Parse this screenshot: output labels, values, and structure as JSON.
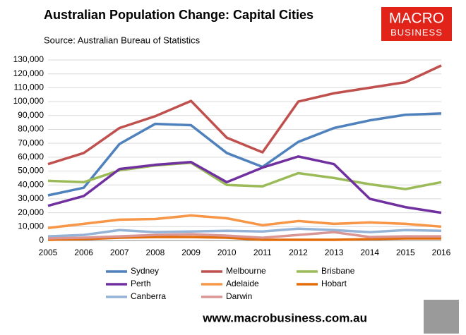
{
  "chart_data": {
    "type": "line",
    "title": "Australian Population Change: Capital Cities",
    "subtitle": "Source: Australian Bureau of Statistics",
    "categories": [
      "2005",
      "2006",
      "2007",
      "2008",
      "2009",
      "2010",
      "2011",
      "2012",
      "2013",
      "2014",
      "2015",
      "2016"
    ],
    "series": [
      {
        "name": "Sydney",
        "color": "#4f81bd",
        "values": [
          32500,
          38000,
          69500,
          84000,
          83000,
          63000,
          53000,
          71000,
          81000,
          86500,
          90500,
          91500
        ]
      },
      {
        "name": "Melbourne",
        "color": "#c0504d",
        "values": [
          55000,
          63000,
          81000,
          89500,
          100500,
          74000,
          63500,
          100000,
          106000,
          110000,
          114000,
          126000
        ]
      },
      {
        "name": "Brisbane",
        "color": "#9bbb59",
        "values": [
          43000,
          42000,
          50500,
          54000,
          56000,
          40000,
          39000,
          48500,
          45000,
          40500,
          37000,
          42000
        ]
      },
      {
        "name": "Perth",
        "color": "#7030a0",
        "values": [
          25000,
          32000,
          51500,
          54500,
          56500,
          42000,
          52500,
          60500,
          55000,
          30000,
          24000,
          20000
        ]
      },
      {
        "name": "Adelaide",
        "color": "#f79646",
        "values": [
          9000,
          12000,
          15000,
          15500,
          18000,
          16000,
          11000,
          14000,
          12000,
          13000,
          12000,
          10000
        ]
      },
      {
        "name": "Hobart",
        "color": "#e46c0a",
        "values": [
          500,
          1000,
          2000,
          2500,
          2500,
          2000,
          500,
          500,
          500,
          1000,
          1500,
          1500
        ]
      },
      {
        "name": "Canberra",
        "color": "#95b3d7",
        "values": [
          3000,
          4000,
          7500,
          6000,
          6500,
          7000,
          6500,
          8500,
          7500,
          6000,
          7500,
          7000
        ]
      },
      {
        "name": "Darwin",
        "color": "#d99694",
        "values": [
          1500,
          2000,
          3000,
          4000,
          4500,
          3500,
          2000,
          4000,
          6000,
          2500,
          3000,
          3000
        ]
      }
    ],
    "ylim": [
      0,
      130000
    ],
    "yticks": [
      0,
      {
        "value": 10000,
        "label": "10,000"
      },
      {
        "value": 20000,
        "label": "20,000"
      },
      {
        "value": 30000,
        "label": "30,000"
      },
      {
        "value": 40000,
        "label": "40,000"
      },
      {
        "value": 50000,
        "label": "50,000"
      },
      {
        "value": 60000,
        "label": "60,000"
      },
      {
        "value": 70000,
        "label": "70,000"
      },
      {
        "value": 80000,
        "label": "80,000"
      },
      {
        "value": 90000,
        "label": "90,000"
      },
      {
        "value": 100000,
        "label": "100,000"
      },
      {
        "value": 110000,
        "label": "110,000"
      },
      {
        "value": 120000,
        "label": "120,000"
      },
      {
        "value": 130000,
        "label": "130,000"
      }
    ],
    "grid": true,
    "legend": "bottom"
  },
  "logo": {
    "line1": "MACRO",
    "line2": "BUSINESS"
  },
  "footer": {
    "website": "www.macrobusiness.com.au"
  }
}
